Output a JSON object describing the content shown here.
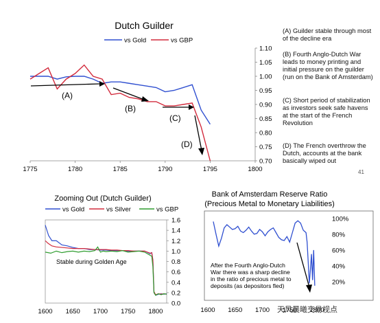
{
  "page_number": "41",
  "watermark": "天风晨曦交易视点",
  "notes": [
    "(A) Guilder stable through most of the decline era",
    "(B) Fourth Anglo-Dutch War leads to money printing and initial pressure on the guilder (run on the Bank of Amsterdam)",
    "(C) Short period of stabilization as investors seek safe havens at the start of the French Revolution",
    "(D) The French overthrow the Dutch, accounts at the bank basically wiped out"
  ],
  "chart_data": [
    {
      "type": "line",
      "title": "Dutch Guilder",
      "xlim": [
        1775,
        1800
      ],
      "ylim": [
        0.7,
        1.1
      ],
      "x_ticks": [
        "1775",
        "1780",
        "1785",
        "1790",
        "1795",
        "1800"
      ],
      "y_ticks": [
        "0.70",
        "0.75",
        "0.80",
        "0.85",
        "0.90",
        "0.95",
        "1.00",
        "1.05",
        "1.10"
      ],
      "y_axis_side": "right",
      "legend_position": "top",
      "series": [
        {
          "name": "vs Gold",
          "color": "#2f4fd0",
          "x": [
            1775,
            1776,
            1777,
            1778,
            1779,
            1780,
            1781,
            1782,
            1783,
            1784,
            1785,
            1786,
            1787,
            1788,
            1789,
            1790,
            1791,
            1792,
            1793,
            1794,
            1795
          ],
          "y": [
            1.0,
            1.0,
            1.0,
            0.99,
            0.998,
            1.0,
            1.0,
            0.99,
            0.975,
            0.98,
            0.98,
            0.975,
            0.97,
            0.965,
            0.96,
            0.945,
            0.95,
            0.96,
            0.97,
            0.88,
            0.83
          ]
        },
        {
          "name": "vs GBP",
          "color": "#d22a3c",
          "x": [
            1775,
            1776,
            1777,
            1778,
            1779,
            1780,
            1781,
            1782,
            1783,
            1784,
            1785,
            1786,
            1787,
            1788,
            1789,
            1790,
            1791,
            1792,
            1793,
            1794,
            1795
          ],
          "y": [
            0.99,
            1.01,
            1.03,
            0.955,
            0.99,
            1.01,
            1.04,
            1.0,
            0.99,
            0.935,
            0.94,
            0.925,
            0.92,
            0.91,
            0.91,
            0.895,
            0.895,
            0.9,
            0.905,
            0.82,
            0.7
          ]
        }
      ],
      "annotations": [
        "(A)",
        "(B)",
        "(C)",
        "(D)"
      ]
    },
    {
      "type": "line",
      "title": "Zooming Out (Dutch Guilder)",
      "xlim": [
        1600,
        1820
      ],
      "ylim": [
        0,
        1.6
      ],
      "x_ticks": [
        "1600",
        "1650",
        "1700",
        "1750",
        "1800"
      ],
      "y_ticks": [
        "0.0",
        "0.2",
        "0.4",
        "0.6",
        "0.8",
        "1.0",
        "1.2",
        "1.4",
        "1.6"
      ],
      "y_axis_side": "right",
      "legend_position": "top",
      "annotation": "Stable during Golden Age",
      "series": [
        {
          "name": "vs Gold",
          "color": "#2f4fd0",
          "x": [
            1600,
            1603,
            1606,
            1612,
            1620,
            1630,
            1640,
            1650,
            1660,
            1670,
            1680,
            1690,
            1700,
            1710,
            1720,
            1730,
            1740,
            1750,
            1760,
            1770,
            1780,
            1790,
            1793,
            1795,
            1797,
            1800,
            1805,
            1810,
            1815,
            1820
          ],
          "y": [
            1.5,
            1.4,
            1.3,
            1.2,
            1.2,
            1.12,
            1.1,
            1.07,
            1.05,
            1.05,
            1.03,
            1.03,
            1.02,
            1.02,
            1.01,
            1.01,
            1.01,
            1.0,
            1.0,
            1.0,
            1.0,
            0.95,
            0.97,
            0.83,
            0.2,
            0.15,
            0.17,
            0.18,
            0.17,
            0.18
          ]
        },
        {
          "name": "vs Silver",
          "color": "#d22a3c",
          "x": [
            1600,
            1605,
            1612,
            1620,
            1630,
            1640,
            1650,
            1660,
            1670,
            1680,
            1690,
            1700,
            1710,
            1720,
            1730,
            1740,
            1750,
            1760,
            1770,
            1780,
            1790,
            1793,
            1795,
            1797,
            1800,
            1805,
            1810,
            1815,
            1820
          ],
          "y": [
            1.2,
            1.15,
            1.1,
            1.08,
            1.07,
            1.06,
            1.05,
            1.05,
            1.05,
            1.04,
            1.03,
            1.03,
            1.03,
            1.02,
            1.02,
            1.01,
            1.01,
            1.0,
            1.0,
            1.0,
            0.96,
            0.97,
            0.82,
            0.22,
            0.16,
            0.18,
            0.17,
            0.18,
            0.17
          ]
        },
        {
          "name": "vs GBP",
          "color": "#2e9c2e",
          "x": [
            1600,
            1610,
            1620,
            1630,
            1640,
            1650,
            1660,
            1670,
            1680,
            1690,
            1695,
            1700,
            1705,
            1710,
            1720,
            1730,
            1740,
            1750,
            1760,
            1770,
            1780,
            1790,
            1793,
            1795,
            1797,
            1800,
            1805,
            1810,
            1815,
            1820
          ],
          "y": [
            0.98,
            0.96,
            1.0,
            0.97,
            0.99,
            1.0,
            0.98,
            1.0,
            0.99,
            1.01,
            1.08,
            0.98,
            1.0,
            0.99,
            1.0,
            0.99,
            1.01,
            0.98,
            0.99,
            1.0,
            0.98,
            0.92,
            0.9,
            0.7,
            0.2,
            0.15,
            0.18,
            0.16,
            0.18,
            0.17
          ]
        }
      ]
    },
    {
      "type": "line",
      "title": "Bank of Amsterdam Reserve Ratio",
      "subtitle": "(Precious Metal to Monetary Liabilities)",
      "xlim": [
        1600,
        1810
      ],
      "ylim": [
        0,
        1.05
      ],
      "x_ticks": [
        "1600",
        "1650",
        "1700",
        "1750",
        "1800"
      ],
      "x_tick_labels_shown": [
        "1600",
        "1650",
        "1700",
        "1750",
        "1800"
      ],
      "y_ticks": [
        "20%",
        "40%",
        "60%",
        "80%",
        "100%"
      ],
      "y_axis_side": "right",
      "annotation": "After the Fourth Anglo-Dutch War there was a sharp decline in the ratio of precious metal to deposits (as depositors fled)",
      "series": [
        {
          "color": "#2f4fd0",
          "x": [
            1610,
            1615,
            1620,
            1625,
            1630,
            1635,
            1640,
            1645,
            1650,
            1655,
            1660,
            1665,
            1670,
            1675,
            1680,
            1685,
            1690,
            1695,
            1700,
            1705,
            1710,
            1715,
            1720,
            1725,
            1730,
            1735,
            1740,
            1745,
            1750,
            1755,
            1760,
            1765,
            1770,
            1775,
            1780,
            1782,
            1784,
            1786,
            1788,
            1790,
            1792,
            1794,
            1796
          ],
          "y": [
            0.96,
            0.8,
            0.65,
            0.75,
            0.88,
            0.92,
            0.89,
            0.86,
            0.87,
            0.9,
            0.84,
            0.82,
            0.85,
            0.89,
            0.84,
            0.8,
            0.81,
            0.86,
            0.83,
            0.78,
            0.83,
            0.86,
            0.88,
            0.82,
            0.76,
            0.73,
            0.72,
            0.77,
            0.7,
            0.82,
            0.94,
            0.97,
            0.94,
            0.85,
            0.82,
            0.7,
            0.45,
            0.18,
            0.35,
            0.55,
            0.22,
            0.6,
            0.15
          ]
        }
      ]
    }
  ]
}
